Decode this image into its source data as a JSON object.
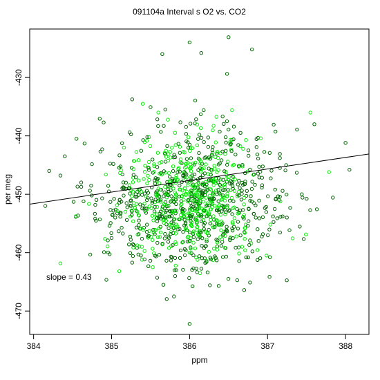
{
  "chart_data": {
    "type": "scatter",
    "title": "091104a   Interval s O2 vs. CO2",
    "xlabel": "ppm",
    "ylabel": "per meg",
    "xlim": [
      383.95,
      388.3
    ],
    "ylim": [
      -474.0,
      -421.7
    ],
    "xticks": [
      "384",
      "385",
      "386",
      "387",
      "388"
    ],
    "yticks": [
      "-430",
      "-440",
      "-450",
      "-460",
      "-470"
    ],
    "annotation": "slope =  0.43",
    "fit_line": {
      "slope": 0.43,
      "x": [
        383.95,
        388.3
      ],
      "y": [
        -451.7,
        -443.1
      ]
    },
    "grid": false,
    "legend": "none",
    "colors": {
      "light_points": "#00ee00",
      "dark_points": "#006400",
      "fit_line": "#000000"
    },
    "sample_points": [
      {
        "x": 386.0,
        "y": -472.2,
        "shade": "dark"
      },
      {
        "x": 385.8,
        "y": -467.5,
        "shade": "dark"
      },
      {
        "x": 386.7,
        "y": -466.4,
        "shade": "dark"
      },
      {
        "x": 386.5,
        "y": -423.1,
        "shade": "dark"
      },
      {
        "x": 386.0,
        "y": -424.0,
        "shade": "dark"
      },
      {
        "x": 385.65,
        "y": -426.0,
        "shade": "dark"
      },
      {
        "x": 386.8,
        "y": -425.2,
        "shade": "dark"
      },
      {
        "x": 386.15,
        "y": -425.8,
        "shade": "dark"
      },
      {
        "x": 384.15,
        "y": -452.0,
        "shade": "dark"
      },
      {
        "x": 384.2,
        "y": -446.0,
        "shade": "dark"
      },
      {
        "x": 384.4,
        "y": -443.5,
        "shade": "dark"
      },
      {
        "x": 384.55,
        "y": -440.5,
        "shade": "dark"
      },
      {
        "x": 388.05,
        "y": -445.8,
        "shade": "dark"
      },
      {
        "x": 388.0,
        "y": -441.2,
        "shade": "dark"
      },
      {
        "x": 387.6,
        "y": -438.0,
        "shade": "dark"
      },
      {
        "x": 387.55,
        "y": -436.0,
        "shade": "light"
      },
      {
        "x": 386.0,
        "y": -460.0,
        "shade": "light"
      },
      {
        "x": 385.6,
        "y": -436.0,
        "shade": "light"
      },
      {
        "x": 386.0,
        "y": -450.0,
        "shade": "light"
      },
      {
        "x": 385.4,
        "y": -434.5,
        "shade": "light"
      }
    ]
  }
}
